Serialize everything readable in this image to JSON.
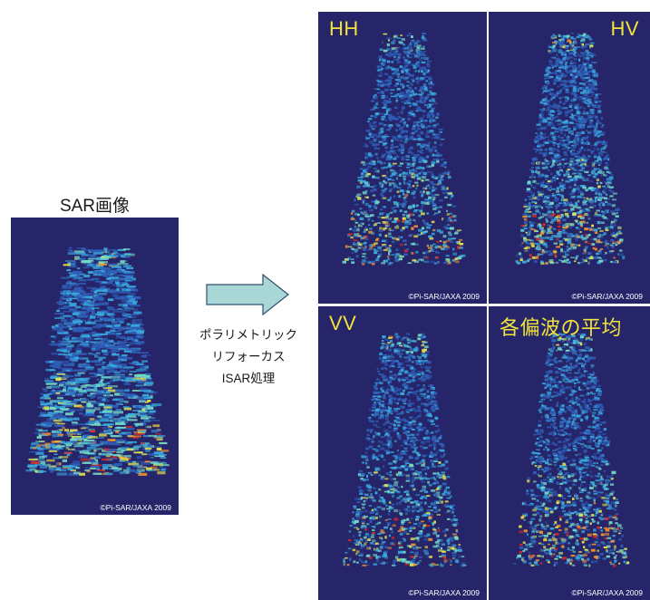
{
  "sar_panel": {
    "title": "SAR画像",
    "copyright": "©Pi-SAR/JAXA 2009"
  },
  "process": {
    "lines": [
      "ポラリメトリック",
      "リフォーカス",
      "ISAR処理"
    ],
    "arrow_fill": "#a9d7d5",
    "arrow_stroke": "#2f4f6f"
  },
  "isar_panels": [
    {
      "label": "HH",
      "copyright": "©Pi-SAR/JAXA 2009"
    },
    {
      "label": "HV",
      "copyright": "©Pi-SAR/JAXA 2009"
    },
    {
      "label": "VV",
      "copyright": "©Pi-SAR/JAXA 2009"
    },
    {
      "label": "各偏波の平均",
      "copyright": "©Pi-SAR/JAXA 2009"
    }
  ],
  "colors": {
    "panel_background": "#26256a",
    "label_color": "#f1e33a"
  }
}
